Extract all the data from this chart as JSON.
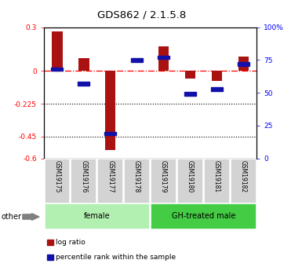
{
  "title": "GDS862 / 2.1.5.8",
  "samples": [
    "GSM19175",
    "GSM19176",
    "GSM19177",
    "GSM19178",
    "GSM19179",
    "GSM19180",
    "GSM19181",
    "GSM19182"
  ],
  "log_ratio": [
    0.27,
    0.09,
    -0.54,
    0.0,
    0.17,
    -0.05,
    -0.07,
    0.1
  ],
  "percentile_rank": [
    68,
    57,
    19,
    75,
    77,
    49,
    53,
    72
  ],
  "groups": [
    {
      "label": "female",
      "indices": [
        0,
        1,
        2,
        3
      ],
      "color": "#b2f0b2"
    },
    {
      "label": "GH-treated male",
      "indices": [
        4,
        5,
        6,
        7
      ],
      "color": "#44cc44"
    }
  ],
  "ylim_left": [
    -0.6,
    0.3
  ],
  "ylim_right": [
    0,
    100
  ],
  "yticks_left": [
    0.3,
    0.0,
    -0.225,
    -0.45,
    -0.6
  ],
  "yticks_right": [
    100,
    75,
    50,
    25,
    0
  ],
  "bar_color": "#aa1111",
  "square_color": "#1111aa",
  "background_color": "#ffffff",
  "other_label": "other",
  "legend_items": [
    {
      "label": "log ratio",
      "color": "#aa1111"
    },
    {
      "label": "percentile rank within the sample",
      "color": "#1111aa"
    }
  ]
}
